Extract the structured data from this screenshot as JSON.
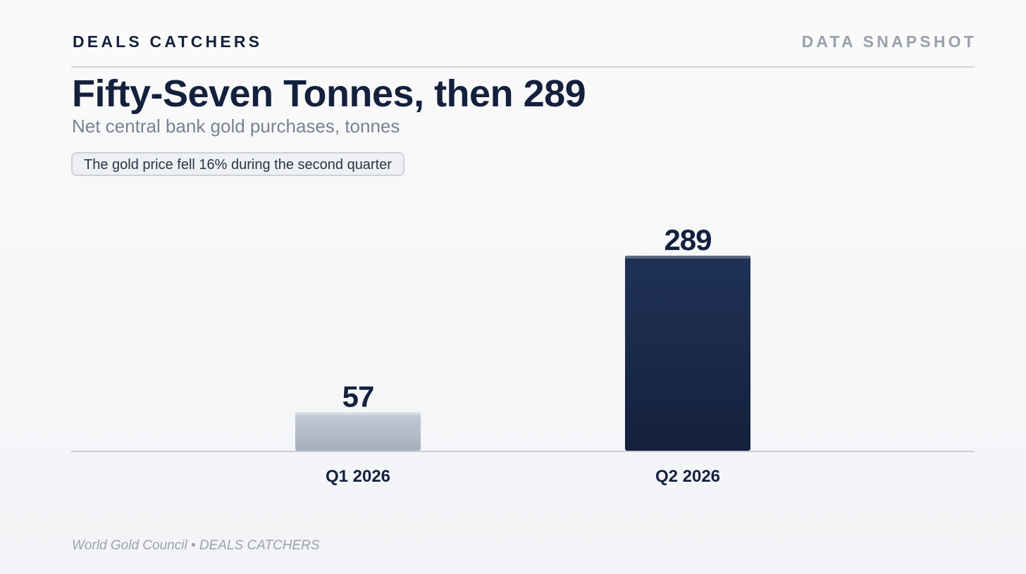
{
  "header": {
    "brand": "DEALS CATCHERS",
    "tag": "DATA SNAPSHOT"
  },
  "title": "Fifty-Seven Tonnes, then 289",
  "subtitle": "Net central bank gold purchases, tonnes",
  "note": "The gold price fell 16% during the second quarter",
  "source": "World Gold Council • DEALS CATCHERS",
  "chart_data": {
    "type": "bar",
    "categories": [
      "Q1 2026",
      "Q2 2026"
    ],
    "values": [
      57,
      289
    ],
    "value_labels": [
      "57",
      "289"
    ],
    "ylim": [
      0,
      289
    ],
    "grid": false,
    "colors": [
      "#aeb6c4",
      "#1a2a4c"
    ]
  }
}
